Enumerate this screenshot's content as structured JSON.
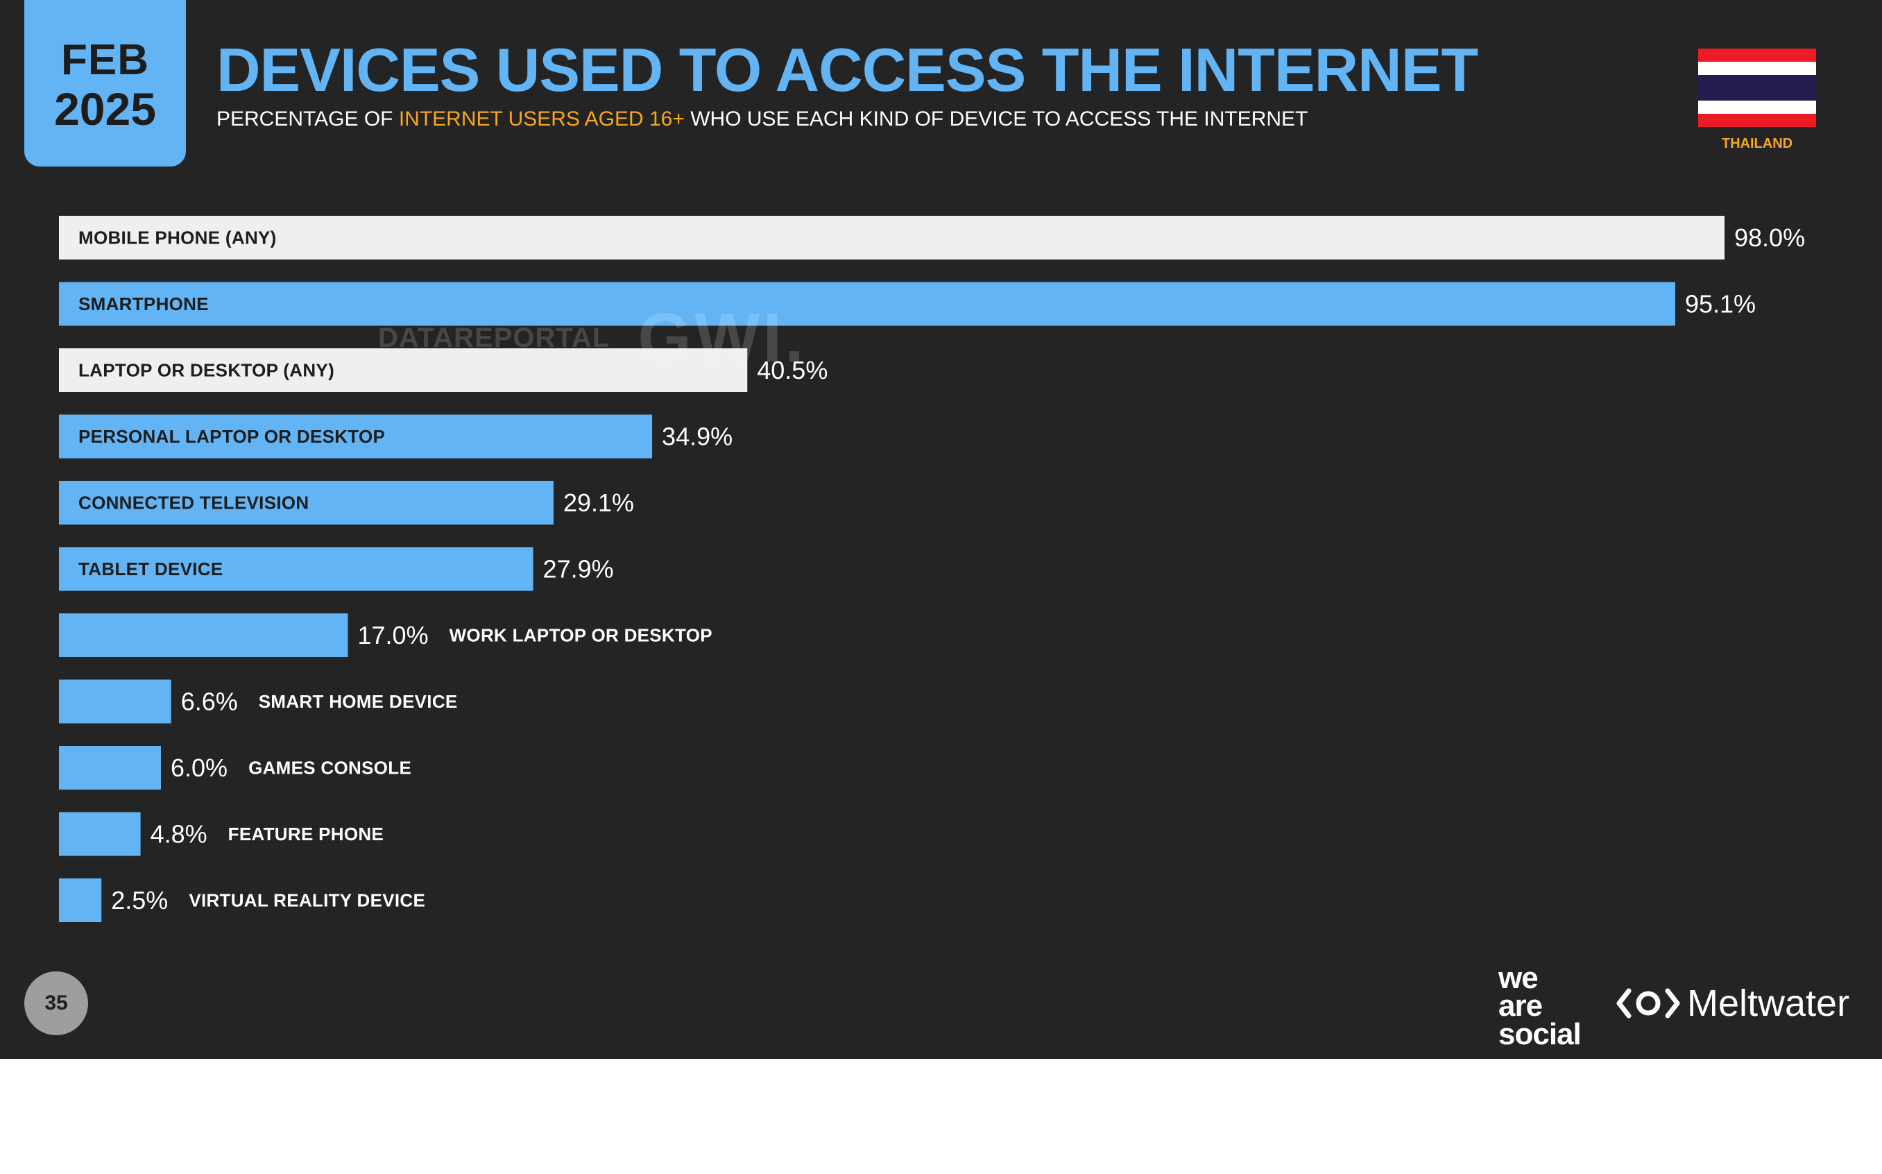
{
  "header": {
    "date_month": "FEB",
    "date_year": "2025",
    "title": "DEVICES USED TO ACCESS THE INTERNET",
    "subtitle_pre": "PERCENTAGE OF ",
    "subtitle_highlight": "INTERNET USERS AGED 16+",
    "subtitle_post": " WHO USE EACH KIND OF DEVICE TO ACCESS THE INTERNET",
    "country": "THAILAND"
  },
  "watermark": {
    "left": "DATAREPORTAL",
    "right": "GWI."
  },
  "footer": {
    "page_number": "35",
    "brand_left": [
      "we",
      "are",
      "social"
    ],
    "brand_right": "Meltwater"
  },
  "colors": {
    "background": "#242424",
    "accent": "#62b4f5",
    "highlight": "#f5a623",
    "total_bar": "#efefef"
  },
  "chart_data": {
    "type": "bar",
    "orientation": "horizontal",
    "unit": "%",
    "xlim": [
      0,
      100
    ],
    "categories": [
      "MOBILE PHONE (ANY)",
      "SMARTPHONE",
      "LAPTOP OR DESKTOP (ANY)",
      "PERSONAL LAPTOP OR DESKTOP",
      "CONNECTED TELEVISION",
      "TABLET DEVICE",
      "WORK LAPTOP OR DESKTOP",
      "SMART HOME DEVICE",
      "GAMES CONSOLE",
      "FEATURE PHONE",
      "VIRTUAL REALITY DEVICE"
    ],
    "values": [
      98.0,
      95.1,
      40.5,
      34.9,
      29.1,
      27.9,
      17.0,
      6.6,
      6.0,
      4.8,
      2.5
    ],
    "value_labels": [
      "98.0%",
      "95.1%",
      "40.5%",
      "34.9%",
      "29.1%",
      "27.9%",
      "17.0%",
      "6.6%",
      "6.0%",
      "4.8%",
      "2.5%"
    ],
    "is_total": [
      true,
      false,
      true,
      false,
      false,
      false,
      false,
      false,
      false,
      false,
      false
    ]
  }
}
